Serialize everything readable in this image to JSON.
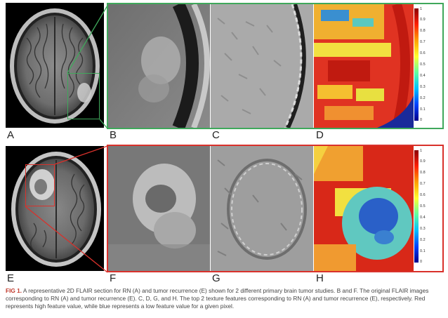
{
  "panels": {
    "A": "A",
    "B": "B",
    "C": "C",
    "D": "D",
    "E": "E",
    "F": "F",
    "G": "G",
    "H": "H"
  },
  "colorbar_ticks": [
    "1",
    "0.9",
    "0.8",
    "0.7",
    "0.6",
    "0.5",
    "0.4",
    "0.3",
    "0.2",
    "0.1",
    "0"
  ],
  "caption": {
    "fig_label": "FIG 1.",
    "text": " A representative 2D FLAIR section for RN (A) and tumor recurrence (E) shown for 2 different primary brain tumor studies. B and F. The original FLAIR images corresponding to RN (A) and tumor recurrence (E). C, D, G, and H. The top 2 texture features corresponding to RN (A) and tumor recurrence (E), respectively. Red represents high feature value, while blue represents a low feature value for a given pixel."
  },
  "colors": {
    "top_frame": "#3fa85b",
    "bottom_frame": "#d9312b",
    "fig_label": "#c0392b"
  }
}
